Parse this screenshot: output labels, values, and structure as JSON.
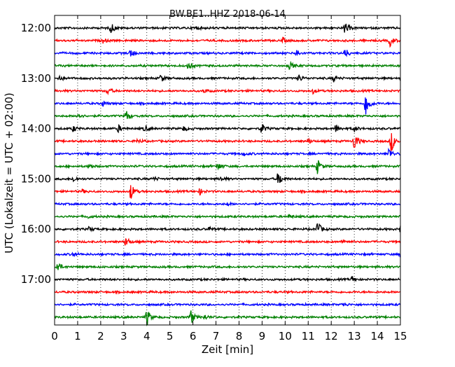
{
  "chart_data": {
    "type": "line",
    "title": "BW.BE1..HHZ 2018-06-14",
    "xlabel": "Zeit  [min]",
    "ylabel": "UTC (Lokalzeit = UTC + 02:00)",
    "xlim": [
      0,
      15
    ],
    "x_ticks": [
      "0",
      "1",
      "2",
      "3",
      "4",
      "5",
      "6",
      "7",
      "8",
      "9",
      "10",
      "11",
      "12",
      "13",
      "14",
      "15"
    ],
    "y_ticks": [
      "12:00",
      "13:00",
      "14:00",
      "15:00",
      "16:00",
      "17:00"
    ],
    "grid": "vertical dotted lines at each minute",
    "line_start": "12:00",
    "line_duration_min": 15,
    "colors": [
      "#000000",
      "#ff0000",
      "#0000ff",
      "#008000"
    ],
    "series": [
      {
        "time": "12:00",
        "events": [
          [
            2.45,
            0.9
          ],
          [
            6.1,
            0.3
          ],
          [
            12.6,
            1.0
          ]
        ]
      },
      {
        "time": "12:15",
        "events": [
          [
            2.1,
            0.35
          ],
          [
            9.9,
            0.4
          ],
          [
            14.55,
            0.9
          ]
        ]
      },
      {
        "time": "12:30",
        "events": [
          [
            3.3,
            0.7
          ],
          [
            10.5,
            0.6
          ],
          [
            12.6,
            0.8
          ]
        ]
      },
      {
        "time": "12:45",
        "events": [
          [
            5.8,
            0.6
          ],
          [
            10.2,
            0.6
          ]
        ]
      },
      {
        "time": "13:00",
        "events": [
          [
            0.2,
            0.5
          ],
          [
            4.6,
            0.6
          ],
          [
            10.6,
            0.6
          ],
          [
            12.1,
            0.5
          ]
        ]
      },
      {
        "time": "13:15",
        "events": [
          [
            2.3,
            0.6
          ],
          [
            6.5,
            0.3
          ],
          [
            11.2,
            0.4
          ]
        ]
      },
      {
        "time": "13:30",
        "events": [
          [
            2.1,
            0.4
          ],
          [
            13.5,
            2.2
          ]
        ]
      },
      {
        "time": "13:45",
        "events": [
          [
            1.0,
            0.6
          ],
          [
            3.1,
            1.0
          ]
        ]
      },
      {
        "time": "14:00",
        "events": [
          [
            0.8,
            0.5
          ],
          [
            2.75,
            0.6
          ],
          [
            3.9,
            0.5
          ],
          [
            5.6,
            0.4
          ],
          [
            8.95,
            1.0
          ],
          [
            12.2,
            0.7
          ],
          [
            13.0,
            0.5
          ]
        ]
      },
      {
        "time": "14:15",
        "events": [
          [
            3.6,
            0.4
          ],
          [
            11.0,
            0.4
          ],
          [
            13.0,
            1.6
          ],
          [
            14.6,
            1.8
          ]
        ]
      },
      {
        "time": "14:30",
        "events": [
          [
            8.2,
            0.3
          ],
          [
            14.5,
            1.0
          ]
        ]
      },
      {
        "time": "14:45",
        "events": [
          [
            1.5,
            0.4
          ],
          [
            7.1,
            0.6
          ],
          [
            11.4,
            1.2
          ]
        ]
      },
      {
        "time": "15:00",
        "events": [
          [
            0.8,
            0.5
          ],
          [
            4.3,
            0.3
          ],
          [
            7.2,
            0.4
          ],
          [
            9.7,
            1.3
          ]
        ]
      },
      {
        "time": "15:15",
        "events": [
          [
            1.2,
            0.3
          ],
          [
            3.3,
            1.4
          ],
          [
            6.3,
            0.5
          ]
        ]
      },
      {
        "time": "15:30",
        "events": [
          [
            7.5,
            0.2
          ]
        ]
      },
      {
        "time": "15:45",
        "events": [
          [
            1.4,
            0.3
          ],
          [
            10.2,
            0.3
          ]
        ]
      },
      {
        "time": "16:00",
        "events": [
          [
            1.5,
            0.35
          ],
          [
            6.7,
            0.3
          ],
          [
            11.4,
            1.3
          ],
          [
            15.0,
            0.5
          ]
        ]
      },
      {
        "time": "16:15",
        "events": [
          [
            3.1,
            0.9
          ],
          [
            12.5,
            0.4
          ]
        ]
      },
      {
        "time": "16:30",
        "events": [
          [
            0.8,
            0.4
          ],
          [
            15.0,
            0.5
          ]
        ]
      },
      {
        "time": "16:45",
        "events": [
          [
            0.1,
            1.1
          ]
        ]
      },
      {
        "time": "17:00",
        "events": [
          [
            12.9,
            0.5
          ]
        ]
      },
      {
        "time": "17:15",
        "events": []
      },
      {
        "time": "17:30",
        "events": [
          [
            12.5,
            0.3
          ]
        ]
      },
      {
        "time": "17:45",
        "events": [
          [
            4.0,
            1.4
          ],
          [
            5.9,
            1.3
          ],
          [
            6.5,
            0.4
          ]
        ]
      }
    ]
  }
}
